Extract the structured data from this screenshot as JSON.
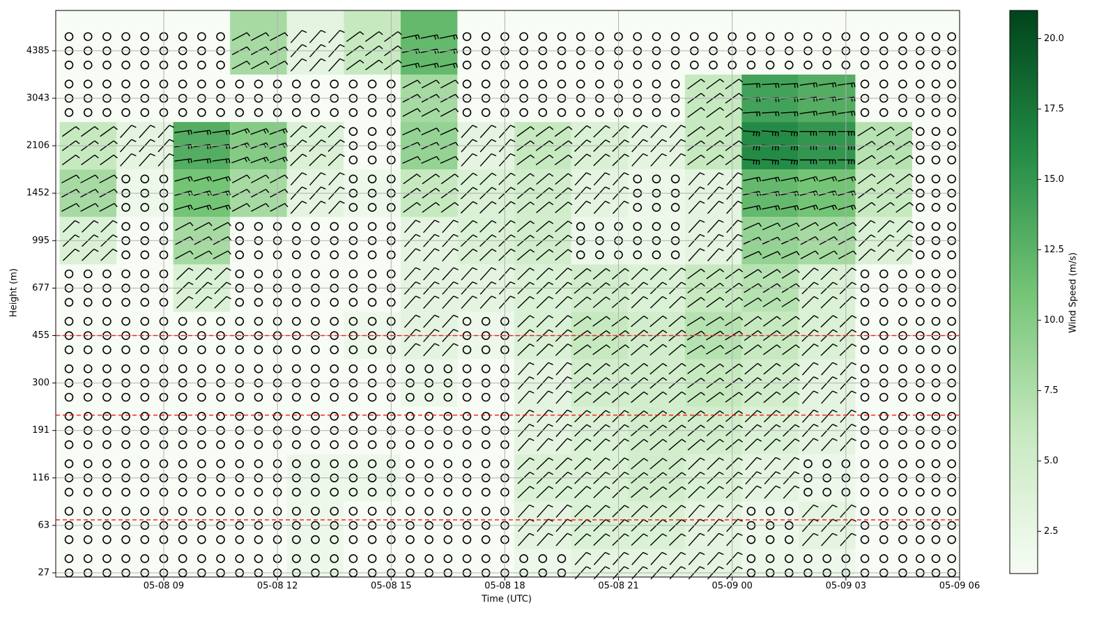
{
  "chart_data": {
    "type": "heatmap",
    "xlabel": "Time (UTC)",
    "ylabel": "Height (m)",
    "colorbar_label": "Wind Speed (m/s)",
    "xlim": [
      6.15,
      30
    ],
    "xticks": [
      {
        "value": 9,
        "label": "05-08 09"
      },
      {
        "value": 12,
        "label": "05-08 12"
      },
      {
        "value": 15,
        "label": "05-08 15"
      },
      {
        "value": 18,
        "label": "05-08 18"
      },
      {
        "value": 21,
        "label": "05-08 21"
      },
      {
        "value": 24,
        "label": "05-09 00"
      },
      {
        "value": 27,
        "label": "05-09 03"
      },
      {
        "value": 30,
        "label": "05-09 06"
      }
    ],
    "levels": [
      27,
      63,
      116,
      191,
      300,
      455,
      677,
      995,
      1452,
      2106,
      3043,
      4385
    ],
    "x": [
      7,
      8.5,
      10,
      11.5,
      13,
      14.5,
      16,
      17.5,
      19,
      20.5,
      22,
      23.5,
      25,
      26.5,
      28,
      29.5
    ],
    "speed": [
      [
        1,
        1,
        1,
        1,
        2,
        1,
        1,
        1,
        2,
        3,
        3,
        3,
        2,
        2,
        1,
        1
      ],
      [
        1,
        1,
        1,
        1,
        2,
        1,
        1,
        1,
        3,
        4,
        4,
        3,
        2,
        3,
        1,
        1
      ],
      [
        1,
        1,
        1,
        1,
        2,
        2,
        1,
        1,
        4,
        4,
        5,
        4,
        3,
        2,
        1,
        1
      ],
      [
        1,
        1,
        1,
        1,
        1,
        1,
        1,
        1,
        3,
        4,
        5,
        5,
        4,
        3,
        1,
        1
      ],
      [
        1,
        1,
        1,
        1,
        1,
        1,
        2,
        1,
        3,
        5,
        5,
        6,
        5,
        3,
        1,
        1
      ],
      [
        1,
        1,
        1,
        1,
        1,
        2,
        3,
        2,
        4,
        6,
        5,
        7,
        6,
        4,
        1,
        1
      ],
      [
        1,
        1,
        4,
        1,
        1,
        1,
        3,
        3,
        4,
        5,
        4,
        6,
        7,
        4,
        1,
        1
      ],
      [
        4,
        1,
        8,
        1,
        1,
        1,
        3,
        4,
        5,
        2,
        2,
        3,
        9,
        8,
        4,
        1
      ],
      [
        8,
        2,
        11,
        8,
        3,
        2,
        6,
        4,
        5,
        3,
        2,
        3,
        12,
        11,
        6,
        1
      ],
      [
        6,
        3,
        13,
        10,
        4,
        1,
        9,
        3,
        6,
        4,
        3,
        6,
        16,
        15,
        7,
        1
      ],
      [
        1,
        1,
        1,
        1,
        1,
        1,
        8,
        1,
        1,
        1,
        1,
        6,
        14,
        13,
        1,
        1
      ],
      [
        1,
        1,
        1,
        8,
        3,
        6,
        12,
        1,
        1,
        1,
        1,
        1,
        1,
        1,
        1,
        1
      ]
    ],
    "calm_threshold": 2.5,
    "clim": [
      1,
      21
    ],
    "cticks": [
      2.5,
      {
        "value": 5,
        "label": "5.0"
      },
      7.5,
      {
        "value": 10,
        "label": "10.0"
      },
      12.5,
      {
        "value": 15,
        "label": "15.0"
      },
      17.5,
      {
        "value": 20,
        "label": "20.0"
      }
    ],
    "colormap": [
      "#f7fcf5",
      "#c7e9c0",
      "#74c476",
      "#238b45",
      "#00441b"
    ],
    "grid": true
  }
}
